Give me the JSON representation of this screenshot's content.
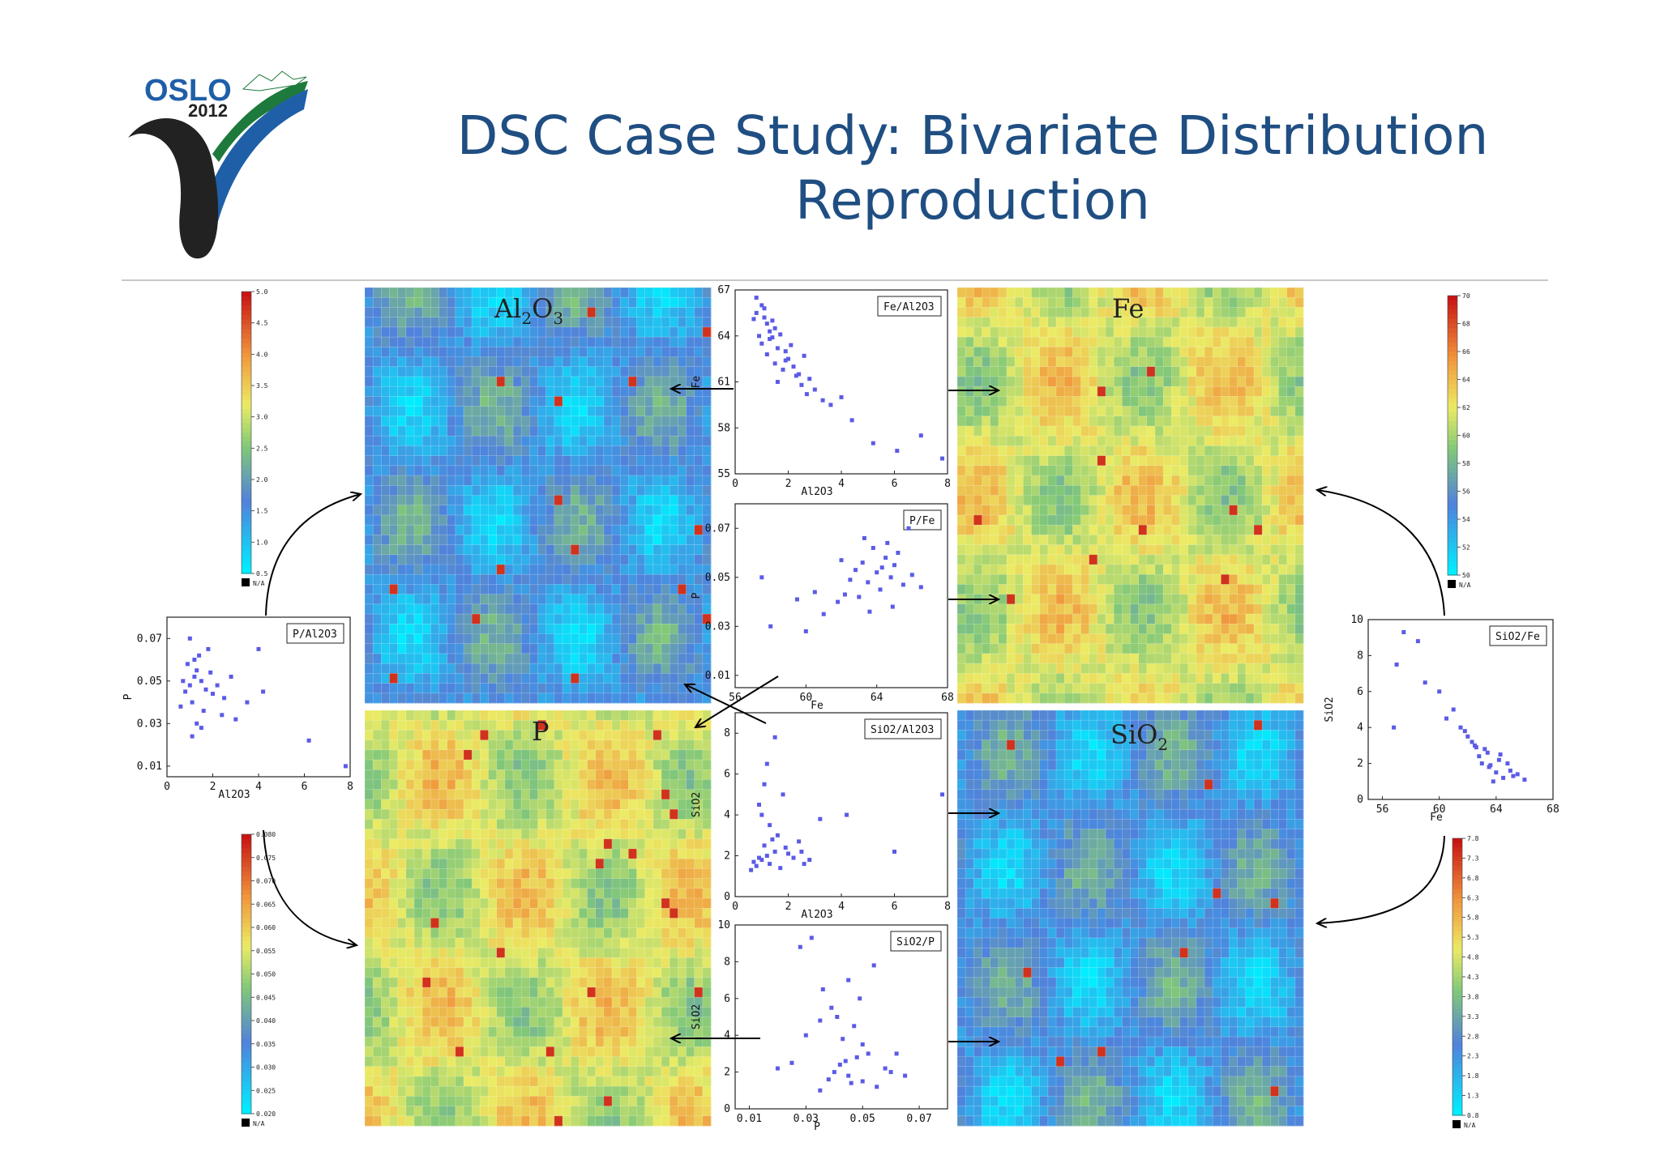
{
  "slide": {
    "title_line1": "DSC Case Study: Bivariate Distribution",
    "title_line2": "Reproduction",
    "logo_text_top": "OSLO",
    "logo_text_bottom": "2012"
  },
  "colors": {
    "title": "#1f4e82",
    "point": "#5b5be6",
    "logo_green": "#1e7a3c",
    "logo_blue": "#1f5fa8",
    "logo_black": "#222222"
  },
  "maps": [
    {
      "id": "al2o3",
      "label_main": "Al",
      "label_sub1": "2",
      "label_mid": "O",
      "label_sub2": "3",
      "palette": "low"
    },
    {
      "id": "fe",
      "label_main": "Fe",
      "label_sub1": "",
      "label_mid": "",
      "label_sub2": "",
      "palette": "mid"
    },
    {
      "id": "p",
      "label_main": "P",
      "label_sub1": "",
      "label_mid": "",
      "label_sub2": "",
      "palette": "mid"
    },
    {
      "id": "sio2",
      "label_main": "SiO",
      "label_sub1": "2",
      "label_mid": "",
      "label_sub2": "",
      "palette": "low"
    }
  ],
  "colorbars": [
    {
      "id": "cb-al2o3",
      "ticks": [
        "5.0",
        "4.5",
        "4.0",
        "3.5",
        "3.0",
        "2.5",
        "2.0",
        "1.5",
        "1.0",
        "0.5"
      ],
      "na": "N/A"
    },
    {
      "id": "cb-fe",
      "ticks": [
        "70",
        "68",
        "66",
        "64",
        "62",
        "60",
        "58",
        "56",
        "54",
        "52",
        "50"
      ],
      "na": "N/A"
    },
    {
      "id": "cb-p",
      "ticks": [
        "0.080",
        "0.075",
        "0.070",
        "0.065",
        "0.060",
        "0.055",
        "0.050",
        "0.045",
        "0.040",
        "0.035",
        "0.030",
        "0.025",
        "0.020"
      ],
      "na": "N/A"
    },
    {
      "id": "cb-sio2",
      "ticks": [
        "7.8",
        "7.3",
        "6.8",
        "6.3",
        "5.8",
        "5.3",
        "4.8",
        "4.3",
        "3.8",
        "3.3",
        "2.8",
        "2.3",
        "1.8",
        "1.3",
        "0.8"
      ],
      "na": "N/A"
    }
  ],
  "chart_data": [
    {
      "type": "scatter",
      "id": "fe-al2o3",
      "title": "Fe/Al2O3",
      "xlabel": "Al2O3",
      "ylabel": "Fe",
      "xlim": [
        0,
        8
      ],
      "ylim": [
        55,
        67
      ],
      "xticks": [
        "0",
        "2",
        "4",
        "6",
        "8"
      ],
      "yticks": [
        "55",
        "58",
        "61",
        "64",
        "67"
      ],
      "x": [
        0.8,
        1.0,
        1.2,
        1.1,
        0.9,
        1.3,
        1.5,
        1.4,
        1.6,
        1.7,
        1.2,
        1.0,
        0.8,
        1.9,
        2.0,
        2.2,
        1.8,
        1.5,
        1.3,
        2.4,
        2.6,
        1.1,
        0.7,
        1.4,
        2.1,
        2.8,
        3.0,
        3.3,
        2.5,
        1.6,
        3.6,
        4.0,
        4.4,
        5.2,
        6.1,
        7.0,
        7.8,
        1.9,
        2.3,
        2.7
      ],
      "y": [
        65.5,
        66.0,
        64.8,
        65.2,
        64.0,
        63.8,
        64.5,
        65.0,
        63.2,
        64.1,
        62.8,
        63.5,
        66.5,
        63.0,
        62.5,
        62.0,
        61.8,
        62.2,
        64.3,
        61.5,
        62.7,
        65.8,
        65.1,
        63.9,
        63.4,
        61.2,
        60.5,
        59.8,
        60.8,
        61.0,
        59.5,
        60.0,
        58.5,
        57.0,
        56.5,
        57.5,
        56.0,
        62.4,
        61.4,
        60.2
      ]
    },
    {
      "type": "scatter",
      "id": "p-fe",
      "title": "P/Fe",
      "xlabel": "Fe",
      "ylabel": "P",
      "xlim": [
        56,
        68
      ],
      "ylim": [
        0.005,
        0.08
      ],
      "xticks": [
        "56",
        "60",
        "64",
        "68"
      ],
      "yticks": [
        "0.01",
        "0.03",
        "0.05",
        "0.07"
      ],
      "x": [
        64.0,
        64.5,
        63.5,
        65.0,
        63.8,
        64.2,
        64.8,
        63.2,
        65.5,
        62.8,
        64.6,
        63.0,
        65.2,
        62.5,
        61.8,
        66.0,
        61.0,
        60.5,
        62.0,
        63.3,
        64.9,
        66.5,
        59.5,
        58.0,
        57.5,
        60.0,
        65.8,
        63.6,
        64.3,
        62.2
      ],
      "y": [
        0.052,
        0.058,
        0.048,
        0.055,
        0.062,
        0.045,
        0.05,
        0.056,
        0.047,
        0.053,
        0.064,
        0.042,
        0.06,
        0.049,
        0.04,
        0.051,
        0.035,
        0.044,
        0.057,
        0.066,
        0.038,
        0.046,
        0.041,
        0.03,
        0.05,
        0.028,
        0.07,
        0.036,
        0.054,
        0.043
      ]
    },
    {
      "type": "scatter",
      "id": "p-al2o3",
      "title": "P/Al2O3",
      "xlabel": "Al2O3",
      "ylabel": "P",
      "xlim": [
        0,
        8
      ],
      "ylim": [
        0.005,
        0.08
      ],
      "xticks": [
        "0",
        "2",
        "4",
        "6",
        "8"
      ],
      "yticks": [
        "0.01",
        "0.03",
        "0.05",
        "0.07"
      ],
      "x": [
        1.0,
        1.2,
        0.8,
        1.5,
        1.3,
        1.1,
        0.9,
        1.7,
        1.4,
        2.0,
        1.6,
        0.7,
        1.9,
        2.2,
        1.0,
        1.3,
        2.5,
        1.8,
        0.6,
        2.8,
        3.0,
        3.5,
        1.5,
        1.2,
        4.2,
        2.4,
        6.2,
        7.8,
        4.0,
        1.1
      ],
      "y": [
        0.048,
        0.052,
        0.045,
        0.05,
        0.055,
        0.04,
        0.058,
        0.046,
        0.062,
        0.044,
        0.036,
        0.05,
        0.054,
        0.048,
        0.07,
        0.03,
        0.042,
        0.065,
        0.038,
        0.052,
        0.032,
        0.04,
        0.028,
        0.06,
        0.045,
        0.034,
        0.022,
        0.01,
        0.065,
        0.024
      ]
    },
    {
      "type": "scatter",
      "id": "sio2-al2o3",
      "title": "SiO2/Al2O3",
      "xlabel": "Al2O3",
      "ylabel": "SiO2",
      "xlim": [
        0,
        8
      ],
      "ylim": [
        0,
        9
      ],
      "xticks": [
        "0",
        "2",
        "4",
        "6",
        "8"
      ],
      "yticks": [
        "0",
        "2",
        "4",
        "6",
        "8"
      ],
      "x": [
        1.0,
        1.2,
        0.8,
        1.5,
        1.3,
        1.1,
        0.9,
        1.7,
        1.4,
        2.0,
        1.6,
        0.7,
        1.9,
        2.2,
        1.0,
        1.3,
        2.5,
        1.8,
        0.6,
        2.8,
        1.2,
        1.5,
        3.2,
        2.4,
        6.0,
        7.8,
        4.2,
        1.1,
        0.9,
        2.6
      ],
      "y": [
        1.8,
        2.0,
        1.5,
        2.2,
        1.6,
        2.5,
        1.9,
        1.4,
        2.8,
        2.1,
        3.0,
        1.7,
        2.4,
        1.9,
        4.0,
        3.5,
        2.2,
        5.0,
        1.3,
        1.8,
        6.5,
        7.8,
        3.8,
        2.7,
        2.2,
        5.0,
        4.0,
        5.5,
        4.5,
        1.6
      ]
    },
    {
      "type": "scatter",
      "id": "sio2-fe",
      "title": "SiO2/Fe",
      "xlabel": "Fe",
      "ylabel": "SiO2",
      "xlim": [
        55,
        68
      ],
      "ylim": [
        0,
        10
      ],
      "xticks": [
        "56",
        "60",
        "64",
        "68"
      ],
      "yticks": [
        "0",
        "2",
        "4",
        "6",
        "8",
        "10"
      ],
      "x": [
        63.0,
        63.5,
        64.0,
        62.8,
        64.5,
        63.2,
        65.0,
        62.5,
        64.2,
        63.8,
        65.5,
        62.0,
        64.8,
        63.4,
        61.5,
        66.0,
        62.3,
        61.0,
        60.5,
        60.0,
        59.0,
        58.5,
        57.5,
        57.0,
        56.8,
        63.6,
        64.3,
        65.2,
        62.6,
        61.8
      ],
      "y": [
        2.0,
        1.8,
        1.5,
        2.4,
        1.2,
        2.8,
        1.6,
        3.0,
        2.2,
        1.0,
        1.4,
        3.5,
        2.0,
        2.6,
        4.0,
        1.1,
        3.2,
        5.0,
        4.5,
        6.0,
        6.5,
        8.8,
        9.3,
        7.5,
        4.0,
        1.9,
        2.5,
        1.3,
        2.9,
        3.8
      ]
    },
    {
      "type": "scatter",
      "id": "sio2-p",
      "title": "SiO2/P",
      "xlabel": "P",
      "ylabel": "SiO2",
      "xlim": [
        0.005,
        0.08
      ],
      "ylim": [
        0,
        10
      ],
      "xticks": [
        "0.01",
        "0.03",
        "0.05",
        "0.07"
      ],
      "yticks": [
        "0",
        "2",
        "4",
        "6",
        "8",
        "10"
      ],
      "x": [
        0.04,
        0.045,
        0.05,
        0.042,
        0.055,
        0.048,
        0.038,
        0.052,
        0.058,
        0.035,
        0.046,
        0.06,
        0.044,
        0.05,
        0.03,
        0.065,
        0.041,
        0.036,
        0.054,
        0.028,
        0.032,
        0.047,
        0.039,
        0.043,
        0.02,
        0.062,
        0.049,
        0.045,
        0.035,
        0.025
      ],
      "y": [
        2.0,
        1.8,
        1.5,
        2.4,
        1.2,
        2.8,
        1.6,
        3.0,
        2.2,
        1.0,
        1.4,
        2.0,
        2.6,
        3.5,
        4.0,
        1.8,
        5.0,
        6.5,
        7.8,
        8.8,
        9.3,
        4.5,
        5.5,
        3.8,
        2.2,
        3.0,
        6.0,
        7.0,
        4.8,
        2.5
      ]
    }
  ]
}
